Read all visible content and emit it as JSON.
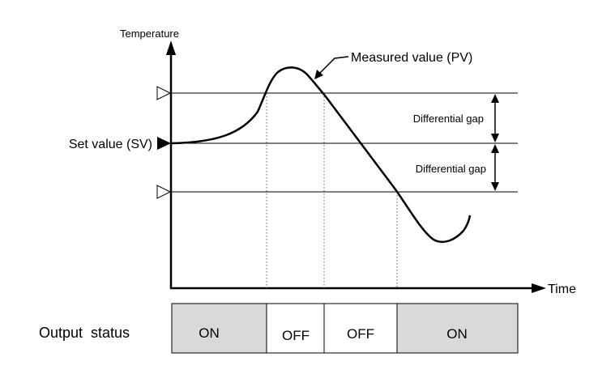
{
  "diagram": {
    "y_axis_label": "Temperature",
    "x_axis_label": "Time",
    "pv_label": "Measured value (PV)",
    "sv_label": "Set value (SV)",
    "gap_upper_label": "Differential gap",
    "gap_lower_label": "Differential gap"
  },
  "output": {
    "label": "Output  status",
    "segments": [
      {
        "text": "ON",
        "state": "on"
      },
      {
        "text": "OFF",
        "state": "off"
      },
      {
        "text": "OFF",
        "state": "off"
      },
      {
        "text": "ON",
        "state": "on"
      }
    ]
  },
  "colors": {
    "on_fill": "#d9d9d9",
    "off_fill": "#ffffff",
    "line": "#000000"
  }
}
